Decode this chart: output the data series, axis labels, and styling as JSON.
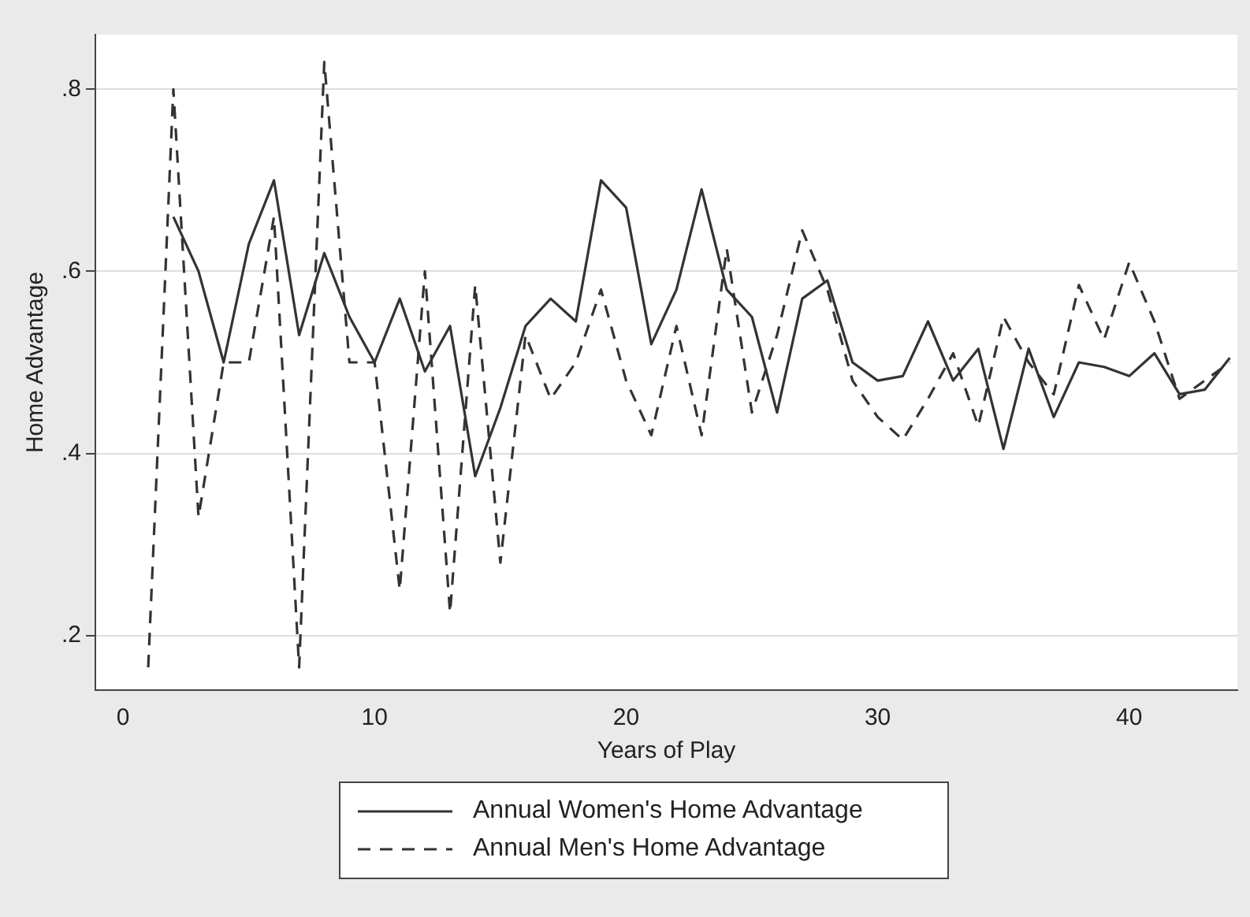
{
  "chart_data": {
    "type": "line",
    "xlabel": "Years of Play",
    "ylabel": "Home Advantage",
    "x": [
      1,
      2,
      3,
      4,
      5,
      6,
      7,
      8,
      9,
      10,
      11,
      12,
      13,
      14,
      15,
      16,
      17,
      18,
      19,
      20,
      21,
      22,
      23,
      24,
      25,
      26,
      27,
      28,
      29,
      30,
      31,
      32,
      33,
      34,
      35,
      36,
      37,
      38,
      39,
      40,
      41,
      42,
      43,
      44
    ],
    "series": [
      {
        "name": "Annual Women's Home Advantage",
        "color": "#333333",
        "line_style": "solid",
        "values": [
          null,
          0.66,
          0.6,
          0.5,
          0.63,
          0.7,
          0.53,
          0.62,
          0.55,
          0.5,
          0.57,
          0.49,
          0.54,
          0.375,
          0.45,
          0.54,
          0.57,
          0.545,
          0.7,
          0.67,
          0.52,
          0.58,
          0.69,
          0.58,
          0.55,
          0.445,
          0.57,
          0.59,
          0.5,
          0.48,
          0.485,
          0.545,
          0.48,
          0.515,
          0.405,
          0.515,
          0.44,
          0.5,
          0.495,
          0.485,
          0.51,
          0.465,
          0.47,
          0.505
        ]
      },
      {
        "name": "Annual Men's Home Advantage",
        "color": "#333333",
        "line_style": "dashed",
        "values": [
          0.165,
          0.8,
          0.33,
          0.5,
          0.5,
          0.66,
          0.165,
          0.83,
          0.5,
          0.5,
          0.25,
          0.6,
          0.225,
          0.585,
          0.28,
          0.53,
          0.46,
          0.5,
          0.58,
          0.48,
          0.42,
          0.54,
          0.42,
          0.625,
          0.445,
          0.53,
          0.645,
          0.58,
          0.48,
          0.44,
          0.415,
          0.46,
          0.51,
          0.43,
          0.55,
          0.5,
          0.465,
          0.585,
          0.525,
          0.61,
          0.545,
          0.46,
          0.48,
          0.5
        ]
      }
    ],
    "xlim": [
      -1.1,
      44.3
    ],
    "xticks": [
      0,
      10,
      20,
      30,
      40
    ],
    "ylim": [
      0.14,
      0.86
    ],
    "yticks": [
      {
        "value": 0.2,
        "label": ".2"
      },
      {
        "value": 0.4,
        "label": ".4"
      },
      {
        "value": 0.6,
        "label": ".6"
      },
      {
        "value": 0.8,
        "label": ".8"
      }
    ],
    "grid": "y",
    "legend": "bottom",
    "marker": "none"
  }
}
